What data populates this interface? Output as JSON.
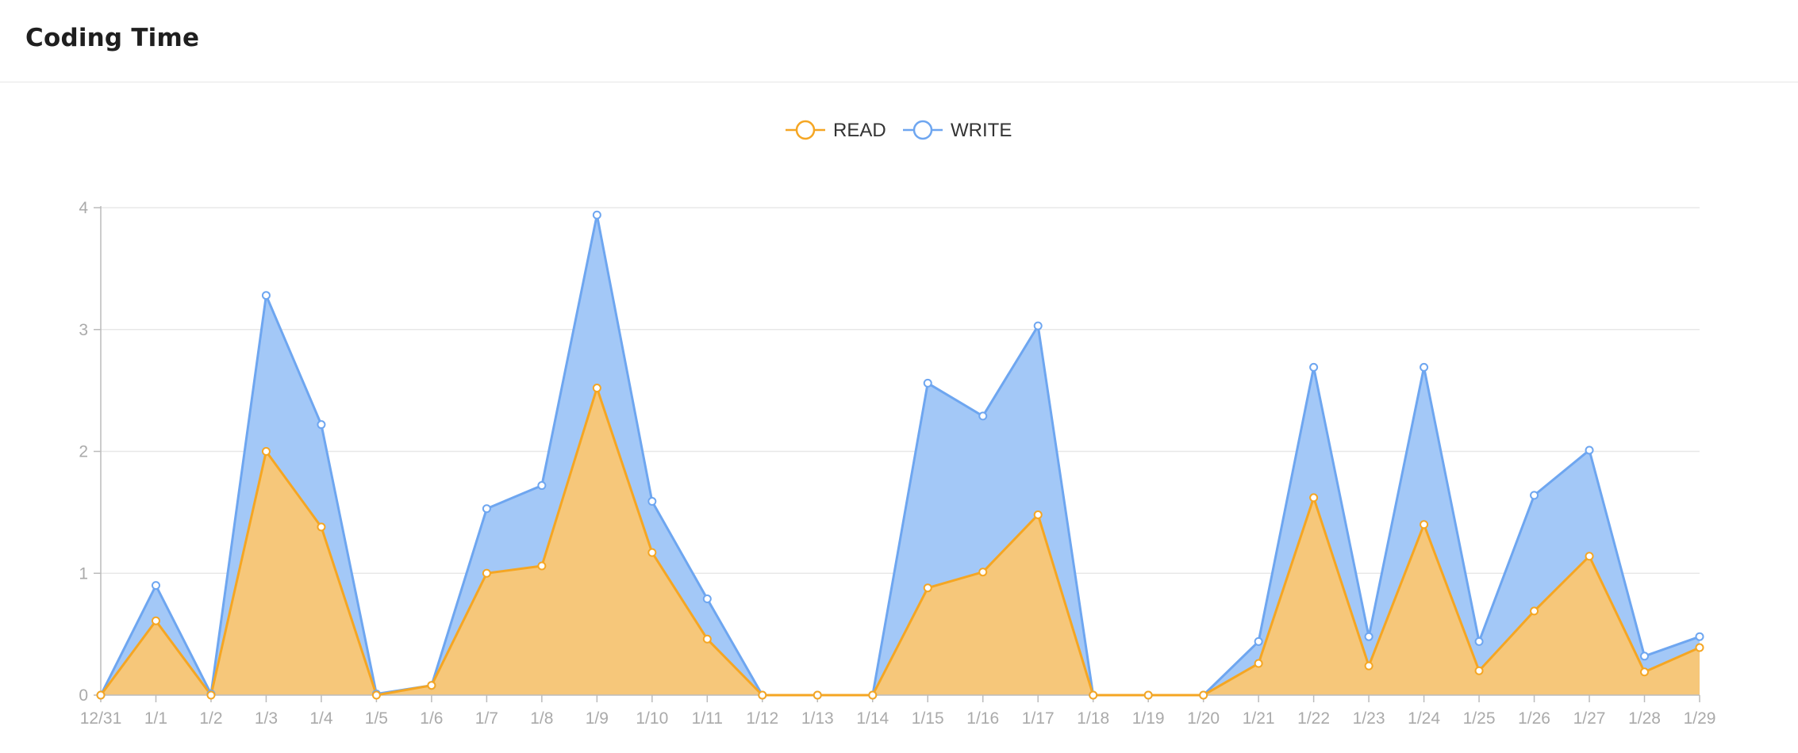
{
  "header": {
    "title": "Coding Time"
  },
  "chart_data": {
    "type": "area",
    "stacked": true,
    "categories": [
      "12/31",
      "1/1",
      "1/2",
      "1/3",
      "1/4",
      "1/5",
      "1/6",
      "1/7",
      "1/8",
      "1/9",
      "1/10",
      "1/11",
      "1/12",
      "1/13",
      "1/14",
      "1/15",
      "1/16",
      "1/17",
      "1/18",
      "1/19",
      "1/20",
      "1/21",
      "1/22",
      "1/23",
      "1/24",
      "1/25",
      "1/26",
      "1/27",
      "1/28",
      "1/29"
    ],
    "series": [
      {
        "name": "READ",
        "color": "#f5a623",
        "fill": "#f6c77a",
        "values": [
          0,
          0.61,
          0,
          2.0,
          1.38,
          0,
          0.08,
          1.0,
          1.06,
          2.52,
          1.17,
          0.46,
          0,
          0,
          0,
          0.88,
          1.01,
          1.48,
          0,
          0,
          0,
          0.26,
          1.62,
          0.24,
          1.4,
          0.2,
          0.69,
          1.14,
          0.19,
          0.39
        ]
      },
      {
        "name": "WRITE",
        "color": "#6ea6f0",
        "fill": "#a3c8f7",
        "values": [
          0,
          0.29,
          0.01,
          1.28,
          0.84,
          0.01,
          0,
          0.53,
          0.66,
          1.42,
          0.42,
          0.33,
          0,
          0,
          0,
          1.68,
          1.28,
          1.55,
          0,
          0,
          0,
          0.18,
          1.07,
          0.24,
          1.29,
          0.24,
          0.95,
          0.87,
          0.13,
          0.09
        ]
      }
    ],
    "ylim": [
      0,
      4
    ],
    "yticks": [
      0,
      1,
      2,
      3,
      4
    ],
    "grid": true,
    "legend_position": "top-center",
    "xlabel": "",
    "ylabel": ""
  }
}
